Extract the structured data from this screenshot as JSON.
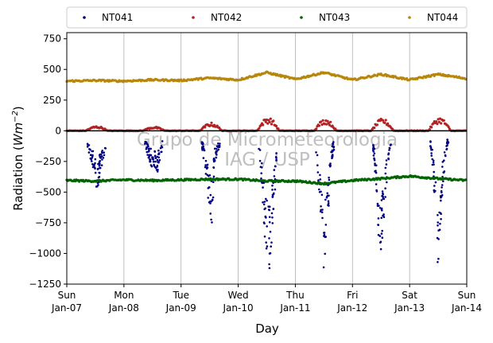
{
  "chart_data": {
    "type": "scatter",
    "title": "",
    "xlabel": "Day",
    "ylabel": "Radiation (Wm⁻²)",
    "ylabel_text": "Radiation (",
    "ylabel_unit": "Wm",
    "ylabel_exp": "−2",
    "ylabel_close": ")",
    "xlim_days": [
      0,
      7
    ],
    "ylim": [
      -1250,
      800
    ],
    "yticks": [
      -1250,
      -1000,
      -750,
      -500,
      -250,
      0,
      250,
      500,
      750
    ],
    "ytick_labels": [
      "−1250",
      "−1000",
      "−750",
      "−500",
      "−250",
      "0",
      "250",
      "500",
      "750"
    ],
    "xticks": [
      {
        "day": "Sun",
        "date": "Jan-07"
      },
      {
        "day": "Mon",
        "date": "Jan-08"
      },
      {
        "day": "Tue",
        "date": "Jan-09"
      },
      {
        "day": "Wed",
        "date": "Jan-10"
      },
      {
        "day": "Thu",
        "date": "Jan-11"
      },
      {
        "day": "Fri",
        "date": "Jan-12"
      },
      {
        "day": "Sat",
        "date": "Jan-13"
      },
      {
        "day": "Sun",
        "date": "Jan-14"
      }
    ],
    "grid": "vertical",
    "legend_position": "top",
    "reference_line_y": 0,
    "watermark_line1": "Grupo de Micrometeorologia",
    "watermark_line2": "IAG / USP",
    "series": [
      {
        "name": "NT041",
        "color": "#000080",
        "description": "daily negative spikes",
        "points": [
          [
            "2018-01-07 09:00",
            -150
          ],
          [
            "2018-01-07 10:00",
            -230
          ],
          [
            "2018-01-07 11:00",
            -300
          ],
          [
            "2018-01-07 12:00",
            -420
          ],
          [
            "2018-01-07 13:00",
            -480
          ],
          [
            "2018-01-07 14:00",
            -320
          ],
          [
            "2018-01-07 15:00",
            -250
          ],
          [
            "2018-01-07 16:00",
            -180
          ],
          [
            "2018-01-08 09:00",
            -120
          ],
          [
            "2018-01-08 10:00",
            -200
          ],
          [
            "2018-01-08 11:00",
            -250
          ],
          [
            "2018-01-08 12:00",
            -300
          ],
          [
            "2018-01-08 13:00",
            -280
          ],
          [
            "2018-01-08 14:00",
            -330
          ],
          [
            "2018-01-08 15:00",
            -250
          ],
          [
            "2018-01-08 16:00",
            -150
          ],
          [
            "2018-01-09 09:00",
            -150
          ],
          [
            "2018-01-09 10:00",
            -300
          ],
          [
            "2018-01-09 11:00",
            -480
          ],
          [
            "2018-01-09 12:00",
            -620
          ],
          [
            "2018-01-09 13:00",
            -760
          ],
          [
            "2018-01-09 14:00",
            -260
          ],
          [
            "2018-01-09 15:00",
            -220
          ],
          [
            "2018-01-09 16:00",
            -140
          ],
          [
            "2018-01-10 09:00",
            -200
          ],
          [
            "2018-01-10 10:00",
            -500
          ],
          [
            "2018-01-10 11:00",
            -800
          ],
          [
            "2018-01-10 12:00",
            -1000
          ],
          [
            "2018-01-10 13:00",
            -1160
          ],
          [
            "2018-01-10 14:00",
            -900
          ],
          [
            "2018-01-10 15:00",
            -600
          ],
          [
            "2018-01-10 16:00",
            -300
          ],
          [
            "2018-01-11 09:00",
            -250
          ],
          [
            "2018-01-11 10:00",
            -550
          ],
          [
            "2018-01-11 11:00",
            -800
          ],
          [
            "2018-01-11 12:00",
            -1140
          ],
          [
            "2018-01-11 13:00",
            -750
          ],
          [
            "2018-01-11 14:00",
            -600
          ],
          [
            "2018-01-11 15:00",
            -300
          ],
          [
            "2018-01-11 16:00",
            -150
          ],
          [
            "2018-01-12 09:00",
            -200
          ],
          [
            "2018-01-12 10:00",
            -500
          ],
          [
            "2018-01-12 11:00",
            -880
          ],
          [
            "2018-01-12 12:00",
            -1060
          ],
          [
            "2018-01-12 13:00",
            -760
          ],
          [
            "2018-01-12 14:00",
            -480
          ],
          [
            "2018-01-12 15:00",
            -320
          ],
          [
            "2018-01-12 16:00",
            -150
          ],
          [
            "2018-01-13 09:00",
            -150
          ],
          [
            "2018-01-13 10:00",
            -400
          ],
          [
            "2018-01-13 11:00",
            -680
          ],
          [
            "2018-01-13 12:00",
            -1170
          ],
          [
            "2018-01-13 13:00",
            -780
          ],
          [
            "2018-01-13 14:00",
            -420
          ],
          [
            "2018-01-13 15:00",
            -250
          ],
          [
            "2018-01-13 16:00",
            -100
          ]
        ]
      },
      {
        "name": "NT042",
        "color": "#b22222",
        "description": "near zero with daytime bumps",
        "points": [
          [
            "2018-01-07 00:00",
            0
          ],
          [
            "2018-01-07 12:00",
            35
          ],
          [
            "2018-01-08 00:00",
            0
          ],
          [
            "2018-01-08 12:00",
            30
          ],
          [
            "2018-01-09 00:00",
            0
          ],
          [
            "2018-01-09 12:00",
            60
          ],
          [
            "2018-01-10 00:00",
            0
          ],
          [
            "2018-01-10 12:00",
            100
          ],
          [
            "2018-01-11 00:00",
            0
          ],
          [
            "2018-01-11 12:00",
            90
          ],
          [
            "2018-01-12 00:00",
            0
          ],
          [
            "2018-01-12 12:00",
            90
          ],
          [
            "2018-01-13 00:00",
            0
          ],
          [
            "2018-01-13 12:00",
            100
          ],
          [
            "2018-01-14 00:00",
            0
          ]
        ]
      },
      {
        "name": "NT043",
        "color": "#006400",
        "description": "steady around -400",
        "points": [
          [
            "2018-01-07 00:00",
            -405
          ],
          [
            "2018-01-07 12:00",
            -410
          ],
          [
            "2018-01-08 00:00",
            -400
          ],
          [
            "2018-01-08 12:00",
            -405
          ],
          [
            "2018-01-09 00:00",
            -400
          ],
          [
            "2018-01-09 12:00",
            -395
          ],
          [
            "2018-01-10 00:00",
            -395
          ],
          [
            "2018-01-10 12:00",
            -410
          ],
          [
            "2018-01-11 00:00",
            -410
          ],
          [
            "2018-01-11 12:00",
            -430
          ],
          [
            "2018-01-12 00:00",
            -405
          ],
          [
            "2018-01-12 12:00",
            -390
          ],
          [
            "2018-01-13 00:00",
            -370
          ],
          [
            "2018-01-13 12:00",
            -390
          ],
          [
            "2018-01-14 00:00",
            -405
          ]
        ]
      },
      {
        "name": "NT044",
        "color": "#b8860b",
        "description": "steady around 410 with bumps",
        "points": [
          [
            "2018-01-07 00:00",
            405
          ],
          [
            "2018-01-07 12:00",
            410
          ],
          [
            "2018-01-08 00:00",
            405
          ],
          [
            "2018-01-08 12:00",
            415
          ],
          [
            "2018-01-09 00:00",
            410
          ],
          [
            "2018-01-09 12:00",
            430
          ],
          [
            "2018-01-10 00:00",
            415
          ],
          [
            "2018-01-10 12:00",
            475
          ],
          [
            "2018-01-11 00:00",
            420
          ],
          [
            "2018-01-11 12:00",
            475
          ],
          [
            "2018-01-12 00:00",
            415
          ],
          [
            "2018-01-12 12:00",
            460
          ],
          [
            "2018-01-13 00:00",
            415
          ],
          [
            "2018-01-13 12:00",
            460
          ],
          [
            "2018-01-14 00:00",
            425
          ]
        ]
      }
    ]
  }
}
